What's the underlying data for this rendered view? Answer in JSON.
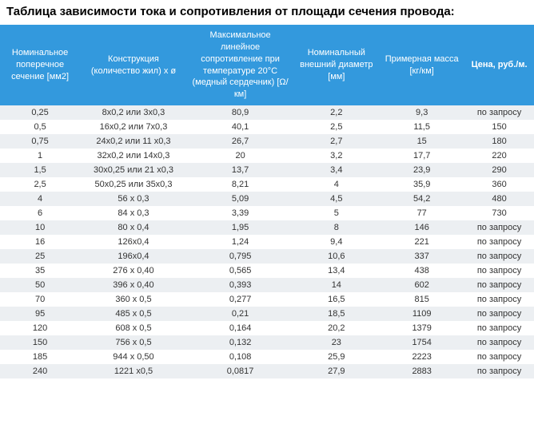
{
  "title": "Таблица зависимости тока и сопротивления от площади сечения провода:",
  "columns": [
    "Номинальное поперечное сечение [мм2]",
    "Конструкция (количество жил) x ø",
    "Максимальное линейное сопротивление при температуре 20°C (медный сердечник) [Ω/км]",
    "Номинальный внешний диаметр [мм]",
    "Примерная масса [кг/км]",
    "Цена, руб./м."
  ],
  "rows": [
    [
      "0,25",
      "8x0,2 или 3x0,3",
      "80,9",
      "2,2",
      "9,3",
      "по запросу"
    ],
    [
      "0,5",
      "16x0,2 или 7x0,3",
      "40,1",
      "2,5",
      "11,5",
      "150"
    ],
    [
      "0,75",
      "24x0,2 или 11 x0,3",
      "26,7",
      "2,7",
      "15",
      "180"
    ],
    [
      "1",
      "32x0,2 или 14x0,3",
      "20",
      "3,2",
      "17,7",
      "220"
    ],
    [
      "1,5",
      "30x0,25 или 21 x0,3",
      "13,7",
      "3,4",
      "23,9",
      "290"
    ],
    [
      "2,5",
      "50x0,25 или 35x0,3",
      "8,21",
      "4",
      "35,9",
      "360"
    ],
    [
      "4",
      "56 x 0,3",
      "5,09",
      "4,5",
      "54,2",
      "480"
    ],
    [
      "6",
      "84 x 0,3",
      "3,39",
      "5",
      "77",
      "730"
    ],
    [
      "10",
      "80 x 0,4",
      "1,95",
      "8",
      "146",
      "по запросу"
    ],
    [
      "16",
      "126x0,4",
      "1,24",
      "9,4",
      "221",
      "по запросу"
    ],
    [
      "25",
      "196x0,4",
      "0,795",
      "10,6",
      "337",
      "по запросу"
    ],
    [
      "35",
      "276 x 0,40",
      "0,565",
      "13,4",
      "438",
      "по запросу"
    ],
    [
      "50",
      "396 x 0,40",
      "0,393",
      "14",
      "602",
      "по запросу"
    ],
    [
      "70",
      "360 x 0,5",
      "0,277",
      "16,5",
      "815",
      "по запросу"
    ],
    [
      "95",
      "485 x 0,5",
      "0,21",
      "18,5",
      "1109",
      "по запросу"
    ],
    [
      "120",
      "608 x 0,5",
      "0,164",
      "20,2",
      "1379",
      "по запросу"
    ],
    [
      "150",
      "756 x 0,5",
      "0,132",
      "23",
      "1754",
      "по запросу"
    ],
    [
      "185",
      "944 x 0,50",
      "0,108",
      "25,9",
      "2223",
      "по запросу"
    ],
    [
      "240",
      "1221 x0,5",
      "0,0817",
      "27,9",
      "2883",
      "по запросу"
    ]
  ],
  "header_bg": "#3399dd",
  "row_odd_bg": "#eceff2",
  "row_even_bg": "#ffffff"
}
